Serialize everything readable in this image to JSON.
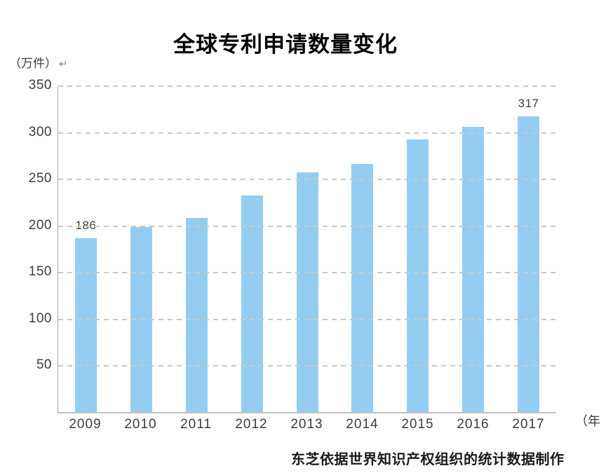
{
  "title": "全球专利申请数量变化",
  "y_axis_unit": "（万件）",
  "return_mark": "↵",
  "x_axis_unit": "（年",
  "caption": "东芝依据世界知识产权组织的统计数据制作",
  "colors": {
    "bar": "#94CDF1",
    "grid": "#c9c9c9",
    "axis": "#a6a6a6",
    "baseline": "#c2c2c2",
    "text": "#3c3c3c",
    "title": "#000000"
  },
  "chart_data": {
    "type": "bar",
    "title": "全球专利申请数量变化",
    "categories": [
      "2009",
      "2010",
      "2011",
      "2012",
      "2013",
      "2014",
      "2015",
      "2016",
      "2017"
    ],
    "values": [
      186,
      198,
      208,
      232,
      257,
      266,
      292,
      306,
      317
    ],
    "labeled_points": {
      "2009": "186",
      "2017": "317"
    },
    "xlabel": "（年",
    "ylabel": "（万件）",
    "ylim": [
      0,
      350
    ],
    "yticks": [
      50,
      100,
      150,
      200,
      250,
      300,
      350
    ],
    "grid": "horizontal-dashed",
    "legend": "none",
    "bar_color": "#94CDF1",
    "source_note": "东芝依据世界知识产权组织的统计数据制作"
  }
}
